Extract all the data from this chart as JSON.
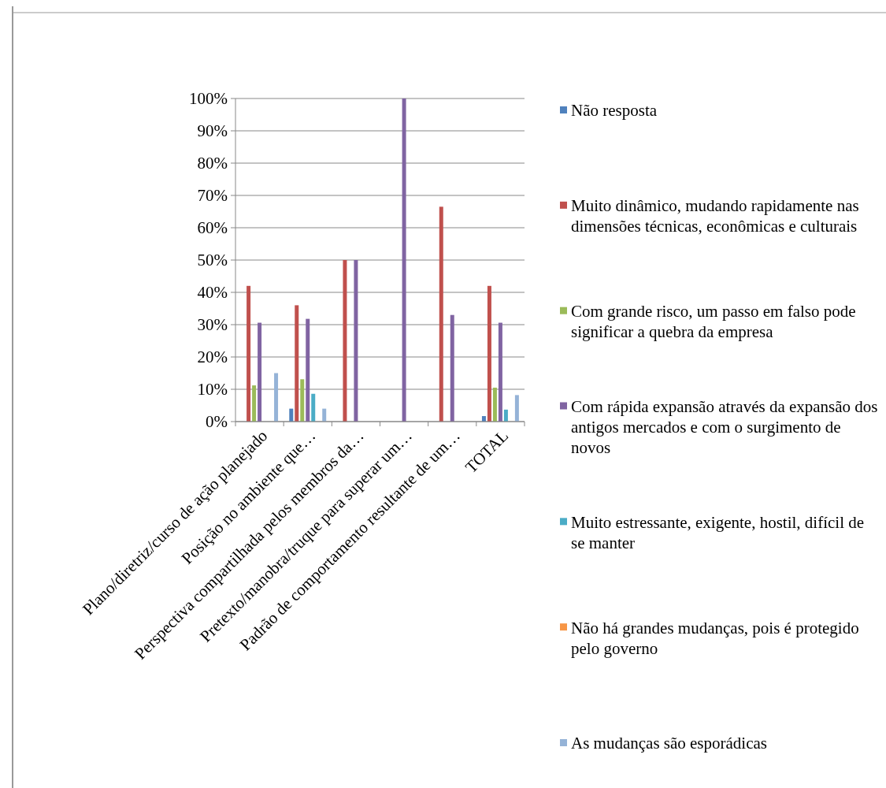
{
  "chart_data": {
    "type": "bar",
    "categories": [
      "Plano/diretriz/curso de ação planejado",
      "Posição no ambiente que…",
      "Perspectiva compartilhada pelos membros da…",
      "Pretexto/manobra/truque para superar um…",
      "Padrão de comportamento resultante de um…",
      "TOTAL"
    ],
    "series": [
      {
        "name": "Não resposta",
        "color": "#4f81bd",
        "values": [
          0,
          4,
          0,
          0,
          0,
          1.7
        ]
      },
      {
        "name": "Muito dinâmico, mudando rapidamente nas dimensões técnicas, econômicas e culturais",
        "color": "#c0504d",
        "values": [
          42,
          36,
          50,
          0,
          66.5,
          42
        ]
      },
      {
        "name": "Com grande risco, um passo em falso pode significar a quebra da empresa",
        "color": "#9bbb59",
        "values": [
          11.2,
          13.1,
          0,
          0,
          0,
          10.5
        ]
      },
      {
        "name": "Com rápida expansão através da expansão dos antigos mercados e com o surgimento de novos",
        "color": "#8064a2",
        "values": [
          30.6,
          31.8,
          50,
          100,
          33,
          30.6
        ]
      },
      {
        "name": "Muito estressante, exigente, hostil, difícil de se manter",
        "color": "#4bacc6",
        "values": [
          0,
          8.6,
          0,
          0,
          0,
          3.7
        ]
      },
      {
        "name": "Não há grandes mudanças, pois é protegido pelo governo",
        "color": "#f79646",
        "values": [
          0,
          0,
          0,
          0,
          0,
          0
        ]
      },
      {
        "name": "As mudanças são esporádicas",
        "color": "#95b3d7",
        "values": [
          15,
          4,
          0,
          0,
          0,
          8.2
        ]
      }
    ],
    "ylim": [
      0,
      100
    ],
    "yticks": [
      {
        "value": 0,
        "label": "0%"
      },
      {
        "value": 10,
        "label": "10%"
      },
      {
        "value": 20,
        "label": "20%"
      },
      {
        "value": 30,
        "label": "30%"
      },
      {
        "value": 40,
        "label": "40%"
      },
      {
        "value": 50,
        "label": "50%"
      },
      {
        "value": 60,
        "label": "60%"
      },
      {
        "value": 70,
        "label": "70%"
      },
      {
        "value": 80,
        "label": "80%"
      },
      {
        "value": 90,
        "label": "90%"
      },
      {
        "value": 100,
        "label": "100%"
      }
    ],
    "grid": "y",
    "legend": "right"
  }
}
